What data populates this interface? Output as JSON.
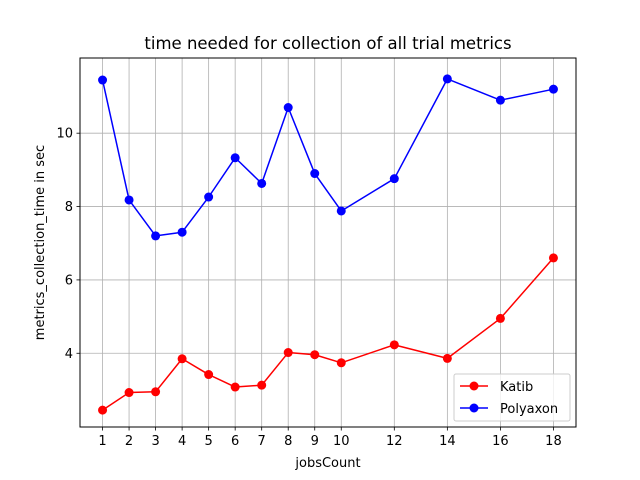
{
  "chart_data": {
    "type": "line",
    "title": "time needed for collection of all trial metrics",
    "xlabel": "jobsCount",
    "ylabel": "metrics_collection_time in sec",
    "x": [
      1,
      2,
      3,
      4,
      5,
      6,
      7,
      8,
      9,
      10,
      12,
      14,
      16,
      18
    ],
    "xticks": [
      1,
      2,
      3,
      4,
      5,
      6,
      7,
      8,
      9,
      10,
      12,
      14,
      16,
      18
    ],
    "yticks": [
      4,
      6,
      8,
      10
    ],
    "xlim": [
      0.15,
      18.85
    ],
    "ylim": [
      1.99,
      12.05
    ],
    "grid": true,
    "legend_position": "lower-right",
    "series": [
      {
        "name": "Katib",
        "color": "#ff0000",
        "values": [
          2.45,
          2.93,
          2.95,
          3.85,
          3.42,
          3.08,
          3.13,
          4.02,
          3.96,
          3.74,
          4.23,
          3.86,
          4.95,
          6.6
        ]
      },
      {
        "name": "Polyaxon",
        "color": "#0000ff",
        "values": [
          11.45,
          8.18,
          7.2,
          7.3,
          8.26,
          9.33,
          8.63,
          10.7,
          8.9,
          7.88,
          8.76,
          11.48,
          10.9,
          11.2
        ]
      }
    ]
  }
}
